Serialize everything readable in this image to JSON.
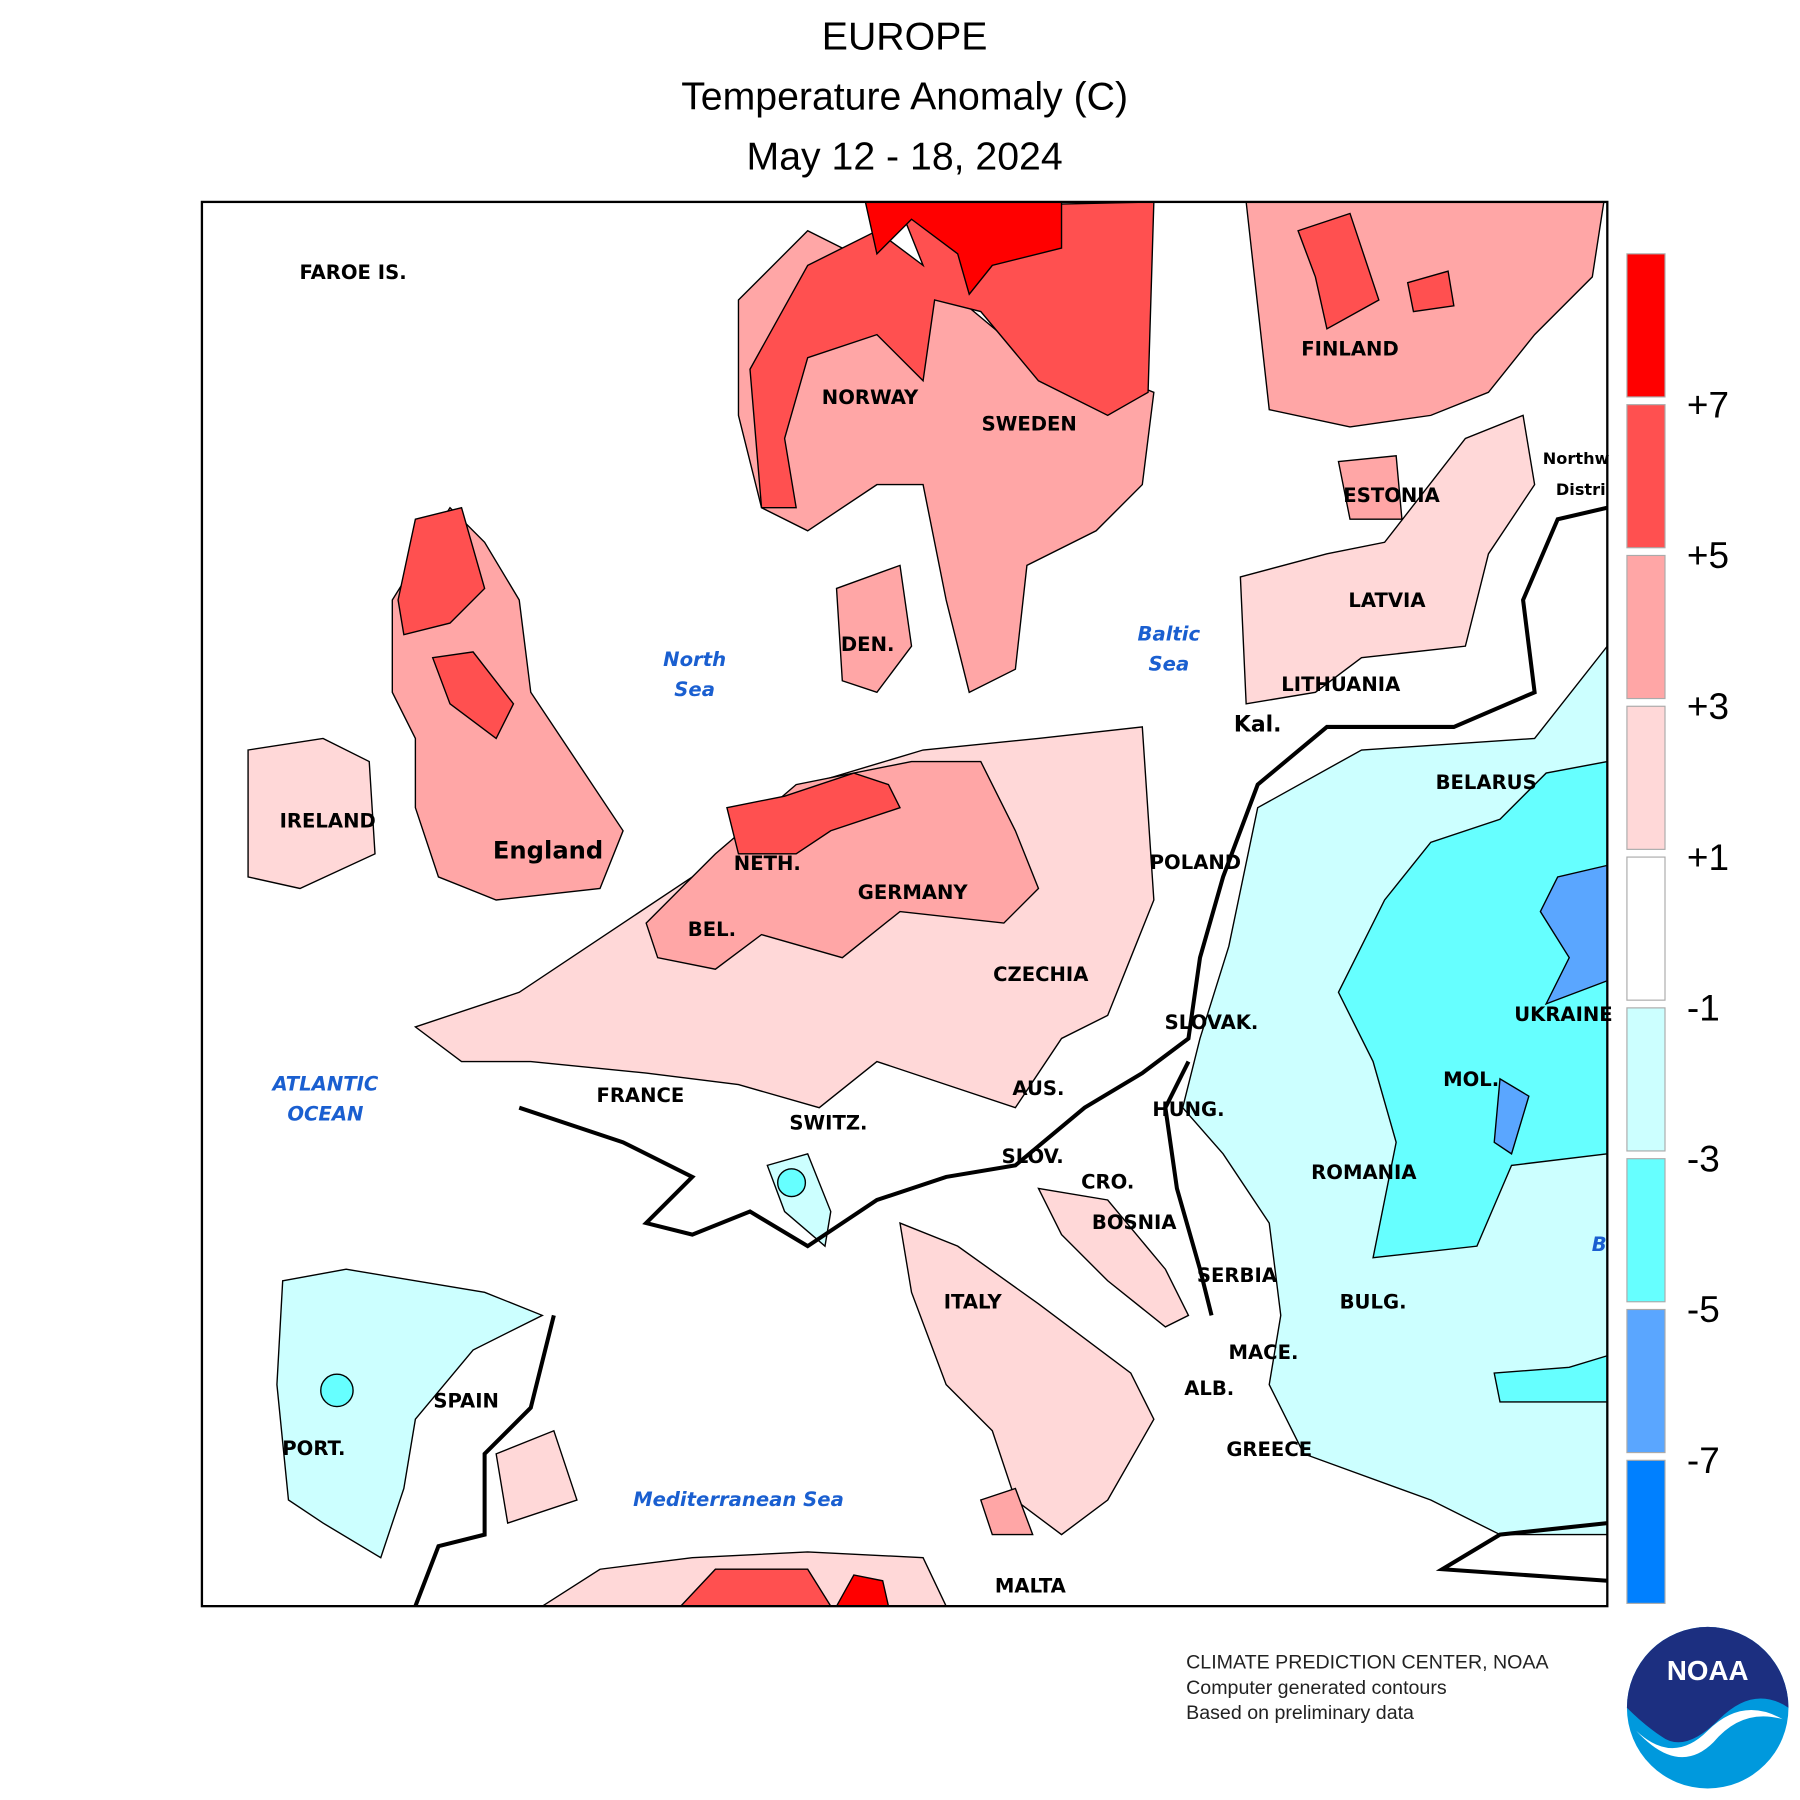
{
  "title": {
    "region": "EUROPE",
    "variable": "Temperature Anomaly (C)",
    "period": "May 12 - 18, 2024"
  },
  "map": {
    "countries": [
      "FAROE IS.",
      "NORWAY",
      "SWEDEN",
      "FINLAND",
      "ESTONIA",
      "LATVIA",
      "LITHUANIA",
      "Northw",
      "Distri",
      "BELARUS",
      "Kal.",
      "POLAND",
      "DEN.",
      "IRELAND",
      "England",
      "NETH.",
      "GERMANY",
      "BEL.",
      "CZECHIA",
      "SLOVAK.",
      "UKRAINE",
      "FRANCE",
      "AUS.",
      "HUNG.",
      "SWITZ.",
      "MOL.",
      "SLOV.",
      "CRO.",
      "ROMANIA",
      "BOSNIA",
      "SERBIA",
      "ITALY",
      "BULG.",
      "MACE.",
      "ALB.",
      "SPAIN",
      "PORT.",
      "GREECE",
      "MALTA"
    ],
    "seas": [
      "North",
      "Sea",
      "Baltic",
      "Sea",
      "ATLANTIC",
      "OCEAN",
      "Mediterranean Sea",
      "B"
    ]
  },
  "legend": {
    "colors": [
      "#ff0000",
      "#ff5050",
      "#ffa6a6",
      "#ffd8d8",
      "#ffffff",
      "#ccffff",
      "#66ffff",
      "#5aa6ff",
      "#0080ff"
    ],
    "ticks": [
      "+7",
      "+5",
      "+3",
      "+1",
      "-1",
      "-3",
      "-5",
      "-7"
    ]
  },
  "credits": [
    "CLIMATE PREDICTION CENTER, NOAA",
    "Computer generated contours",
    "Based on preliminary data"
  ],
  "logo": "NOAA"
}
